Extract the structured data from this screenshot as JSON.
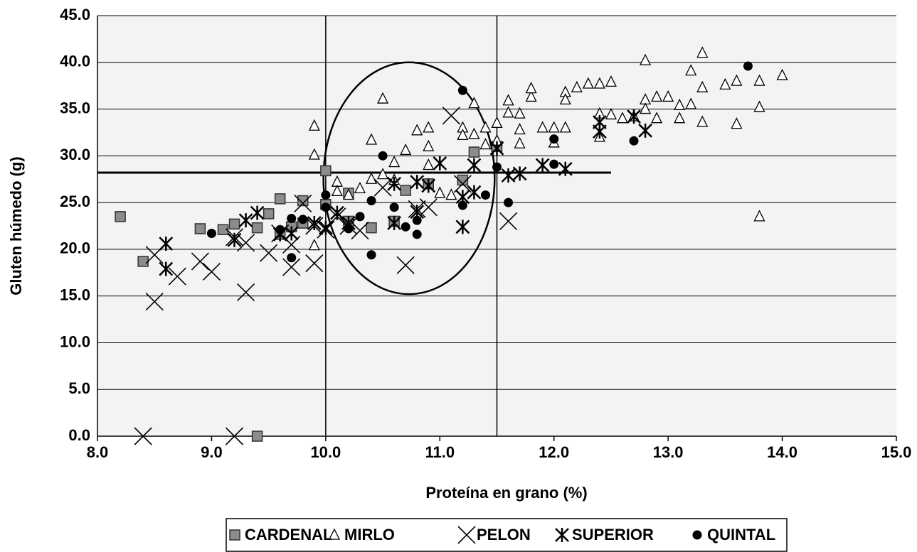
{
  "chart_data": {
    "type": "scatter",
    "xlabel": "Proteína en grano (%)",
    "ylabel": "Gluten húmedo (g)",
    "xlim": [
      8,
      15
    ],
    "ylim": [
      0,
      45
    ],
    "xticks": [
      {
        "value": 8,
        "label": "8.0"
      },
      {
        "value": 9,
        "label": "9.0"
      },
      {
        "value": 10,
        "label": "10.0"
      },
      {
        "value": 11,
        "label": "11.0"
      },
      {
        "value": 12,
        "label": "12.0"
      },
      {
        "value": 13,
        "label": "13.0"
      },
      {
        "value": 14,
        "label": "14.0"
      },
      {
        "value": 15,
        "label": "15.0"
      }
    ],
    "yticks": [
      {
        "value": 0,
        "label": "0.0"
      },
      {
        "value": 5,
        "label": "5.0"
      },
      {
        "value": 10,
        "label": "10.0"
      },
      {
        "value": 15,
        "label": "15.0"
      },
      {
        "value": 20,
        "label": "20.0"
      },
      {
        "value": 25,
        "label": "25.0"
      },
      {
        "value": 30,
        "label": "30.0"
      },
      {
        "value": 35,
        "label": "35.0"
      },
      {
        "value": 40,
        "label": "40.0"
      },
      {
        "value": 45,
        "label": "45.0"
      }
    ],
    "grid": true,
    "legend": "bottom",
    "vlines": [
      10,
      11.5
    ],
    "hline": {
      "y": 28.2,
      "x": [
        8,
        12.5
      ]
    },
    "ellipse": {
      "cx": 10.73,
      "cy": 27.6,
      "rx": 0.75,
      "ry": 12.4
    },
    "series": [
      {
        "name": "CARDENAL",
        "marker": "square",
        "color": "#8c8c8c",
        "x": [
          8.2,
          8.4,
          8.9,
          9.1,
          9.2,
          9.4,
          9.5,
          9.6,
          9.6,
          9.7,
          9.8,
          9.8,
          10.0,
          10.0,
          10.2,
          10.2,
          10.4,
          10.6,
          10.7,
          10.9,
          11.2,
          11.3,
          11.5,
          9.4
        ],
        "y": [
          23.5,
          18.7,
          22.2,
          22.1,
          22.7,
          22.3,
          23.8,
          25.4,
          21.6,
          22.4,
          22.8,
          25.2,
          28.4,
          24.8,
          26.0,
          23.0,
          22.3,
          23.0,
          26.3,
          27.0,
          27.4,
          30.4,
          31.0,
          0.0
        ]
      },
      {
        "name": "MIRLO",
        "marker": "triangle",
        "color": "#000000",
        "x": [
          9.9,
          9.9,
          9.9,
          10.1,
          10.1,
          10.2,
          10.3,
          10.4,
          10.4,
          10.5,
          10.5,
          10.6,
          10.6,
          10.7,
          10.8,
          10.9,
          10.9,
          10.9,
          11.0,
          11.1,
          11.2,
          11.2,
          11.3,
          11.3,
          11.4,
          11.4,
          11.5,
          11.5,
          11.6,
          11.6,
          11.7,
          11.7,
          11.7,
          11.8,
          11.8,
          11.9,
          12.0,
          12.0,
          12.1,
          12.1,
          12.1,
          12.2,
          12.3,
          12.4,
          12.4,
          12.4,
          12.5,
          12.5,
          12.6,
          12.7,
          12.8,
          12.8,
          12.8,
          12.9,
          12.9,
          13.0,
          13.1,
          13.1,
          13.2,
          13.2,
          13.3,
          13.3,
          13.3,
          13.5,
          13.6,
          13.6,
          13.8,
          13.8,
          13.8,
          14.0
        ],
        "y": [
          33.2,
          30.1,
          20.4,
          27.2,
          26.2,
          25.8,
          26.5,
          31.7,
          27.5,
          36.1,
          28.0,
          29.3,
          27.4,
          30.6,
          32.7,
          33.0,
          31.0,
          29.0,
          26.0,
          25.8,
          33.0,
          32.2,
          32.3,
          35.6,
          33.0,
          31.2,
          33.5,
          31.6,
          35.9,
          34.6,
          34.5,
          32.8,
          31.3,
          36.3,
          37.2,
          33.0,
          33.0,
          31.4,
          36.8,
          36.0,
          33.0,
          37.3,
          37.7,
          37.7,
          34.5,
          32.0,
          37.9,
          34.4,
          34.0,
          34.2,
          40.2,
          36.0,
          35.0,
          36.3,
          34.0,
          36.3,
          35.4,
          34.0,
          39.1,
          35.5,
          41.0,
          37.3,
          33.6,
          37.6,
          38.0,
          33.4,
          38.0,
          35.2,
          23.5,
          38.6
        ]
      },
      {
        "name": "PELON",
        "marker": "x",
        "color": "#000000",
        "x": [
          8.4,
          8.5,
          8.5,
          8.7,
          8.9,
          9.0,
          9.2,
          9.2,
          9.3,
          9.3,
          9.5,
          9.6,
          9.7,
          9.7,
          9.8,
          9.9,
          9.9,
          10.0,
          10.1,
          10.2,
          10.3,
          10.5,
          10.7,
          10.8,
          10.9,
          11.1,
          11.2,
          11.6
        ],
        "y": [
          0.0,
          14.4,
          19.4,
          17.1,
          18.7,
          17.6,
          0.0,
          21.3,
          15.4,
          20.7,
          19.6,
          21.7,
          18.1,
          20.5,
          24.9,
          18.5,
          22.5,
          22.1,
          23.5,
          22.5,
          22.0,
          26.6,
          18.3,
          24.3,
          24.5,
          34.3,
          27.0,
          23.0
        ]
      },
      {
        "name": "SUPERIOR",
        "marker": "asterisk",
        "color": "#000000",
        "x": [
          8.6,
          8.6,
          9.2,
          9.3,
          9.4,
          9.6,
          9.7,
          9.9,
          10.0,
          10.1,
          10.2,
          10.6,
          10.6,
          10.8,
          10.8,
          10.9,
          11.0,
          11.2,
          11.2,
          11.3,
          11.3,
          11.5,
          11.6,
          11.7,
          11.9,
          12.1,
          12.4,
          12.4,
          12.7,
          12.8
        ],
        "y": [
          20.6,
          17.9,
          21.0,
          23.1,
          23.9,
          21.6,
          21.7,
          22.8,
          22.3,
          23.9,
          22.8,
          27.0,
          22.8,
          27.2,
          24.0,
          26.8,
          29.2,
          22.4,
          25.6,
          29.0,
          26.1,
          30.8,
          27.9,
          28.1,
          29.0,
          28.6,
          32.6,
          33.6,
          34.2,
          32.7
        ]
      },
      {
        "name": "QUINTAL",
        "marker": "circle",
        "color": "#000000",
        "x": [
          9.0,
          9.6,
          9.7,
          9.7,
          9.8,
          10.0,
          10.0,
          10.2,
          10.3,
          10.4,
          10.4,
          10.5,
          10.6,
          10.7,
          10.8,
          10.8,
          11.2,
          11.2,
          11.4,
          11.5,
          11.6,
          12.0,
          12.0,
          12.7,
          13.7
        ],
        "y": [
          21.7,
          22.1,
          23.3,
          19.1,
          23.2,
          25.8,
          24.5,
          22.2,
          23.5,
          25.2,
          19.4,
          30.0,
          24.5,
          22.4,
          21.6,
          23.1,
          37.0,
          24.7,
          25.8,
          28.8,
          25.0,
          29.1,
          31.8,
          31.6,
          39.6
        ]
      }
    ]
  }
}
